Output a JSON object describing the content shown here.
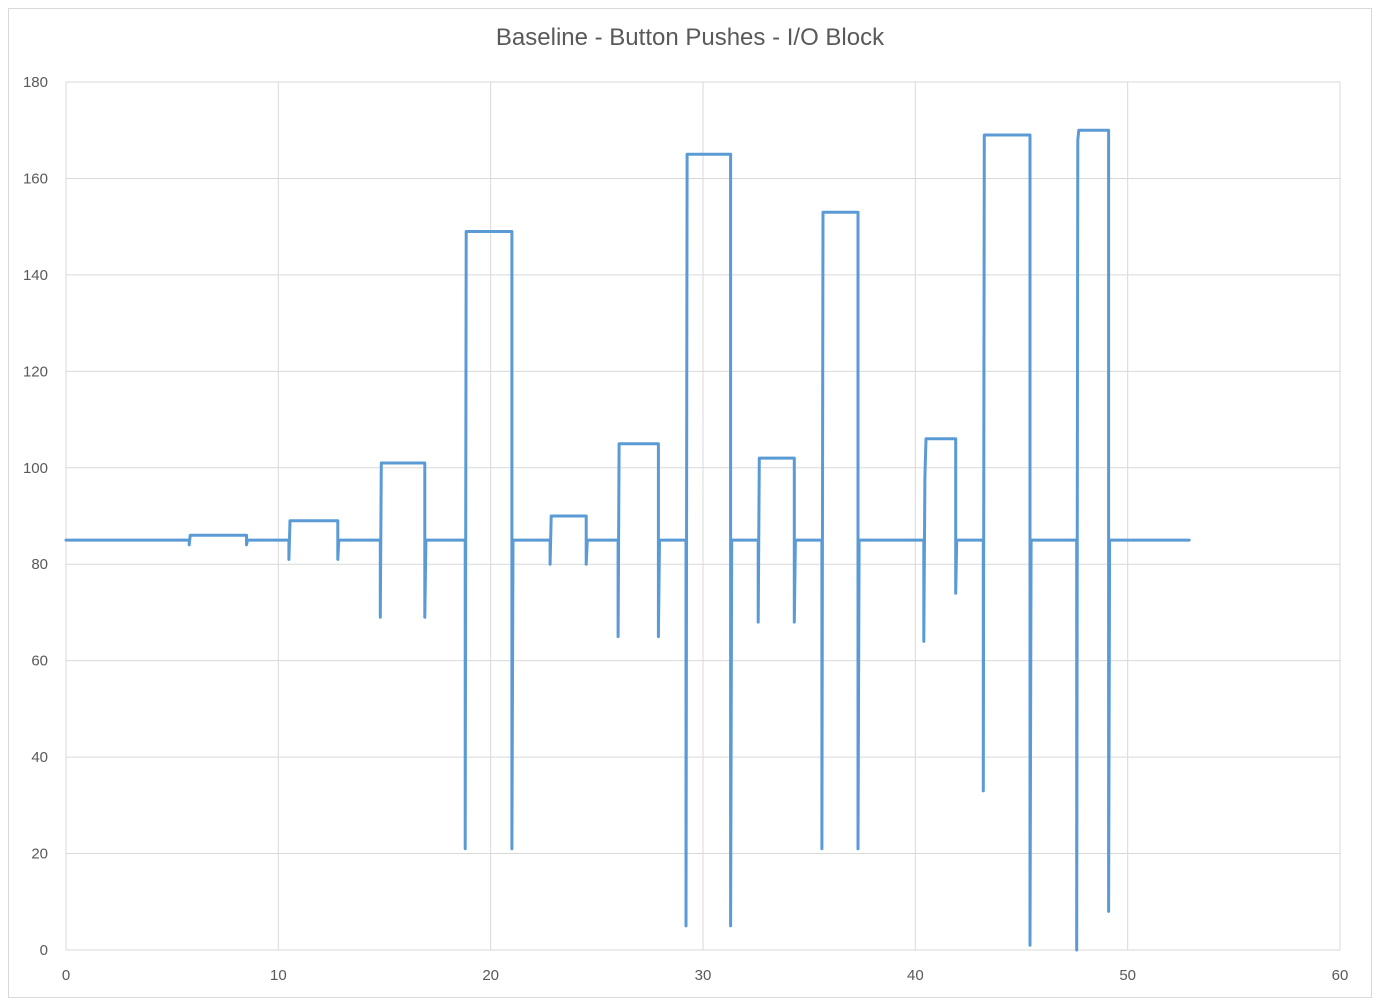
{
  "chart_data": {
    "type": "line",
    "title": "Baseline - Button Pushes - I/O Block",
    "xlabel": "",
    "ylabel": "",
    "xlim": [
      0,
      60
    ],
    "ylim": [
      0,
      180
    ],
    "x_ticks": [
      0,
      10,
      20,
      30,
      40,
      50,
      60
    ],
    "y_ticks": [
      0,
      20,
      40,
      60,
      80,
      100,
      120,
      140,
      160,
      180
    ],
    "grid": true,
    "legend": "none",
    "line_color": "#5b9bd5",
    "series": [
      {
        "points": [
          [
            0,
            85
          ],
          [
            5.8,
            85
          ],
          [
            5.8,
            84
          ],
          [
            5.85,
            86
          ],
          [
            8.5,
            86
          ],
          [
            8.5,
            84
          ],
          [
            8.55,
            85
          ],
          [
            10.5,
            85
          ],
          [
            10.5,
            81
          ],
          [
            10.55,
            89
          ],
          [
            12.8,
            89
          ],
          [
            12.8,
            81
          ],
          [
            12.85,
            85
          ],
          [
            14.8,
            85
          ],
          [
            14.8,
            69
          ],
          [
            14.85,
            101
          ],
          [
            16.9,
            101
          ],
          [
            16.9,
            69
          ],
          [
            16.95,
            85
          ],
          [
            18.8,
            85
          ],
          [
            18.8,
            21
          ],
          [
            18.85,
            149
          ],
          [
            21.0,
            149
          ],
          [
            21.0,
            21
          ],
          [
            21.05,
            85
          ],
          [
            22.8,
            85
          ],
          [
            22.8,
            80
          ],
          [
            22.85,
            90
          ],
          [
            24.5,
            90
          ],
          [
            24.5,
            80
          ],
          [
            24.55,
            85
          ],
          [
            26.0,
            85
          ],
          [
            26.0,
            65
          ],
          [
            26.05,
            105
          ],
          [
            27.9,
            105
          ],
          [
            27.9,
            65
          ],
          [
            27.95,
            85
          ],
          [
            29.2,
            85
          ],
          [
            29.2,
            5
          ],
          [
            29.25,
            165
          ],
          [
            31.3,
            165
          ],
          [
            31.3,
            5
          ],
          [
            31.35,
            85
          ],
          [
            32.6,
            85
          ],
          [
            32.6,
            68
          ],
          [
            32.65,
            102
          ],
          [
            34.3,
            102
          ],
          [
            34.3,
            68
          ],
          [
            34.35,
            85
          ],
          [
            35.6,
            85
          ],
          [
            35.6,
            21
          ],
          [
            35.65,
            153
          ],
          [
            37.3,
            153
          ],
          [
            37.3,
            21
          ],
          [
            37.35,
            85
          ],
          [
            40.4,
            85
          ],
          [
            40.4,
            64
          ],
          [
            40.45,
            98
          ],
          [
            40.5,
            106
          ],
          [
            41.9,
            106
          ],
          [
            41.9,
            74
          ],
          [
            41.95,
            85
          ],
          [
            43.2,
            85
          ],
          [
            43.2,
            33
          ],
          [
            43.25,
            169
          ],
          [
            45.4,
            169
          ],
          [
            45.4,
            1
          ],
          [
            45.45,
            85
          ],
          [
            47.6,
            85
          ],
          [
            47.6,
            0
          ],
          [
            47.65,
            168
          ],
          [
            47.7,
            170
          ],
          [
            49.1,
            170
          ],
          [
            49.1,
            8
          ],
          [
            49.15,
            85
          ],
          [
            52.9,
            85
          ]
        ]
      }
    ]
  }
}
